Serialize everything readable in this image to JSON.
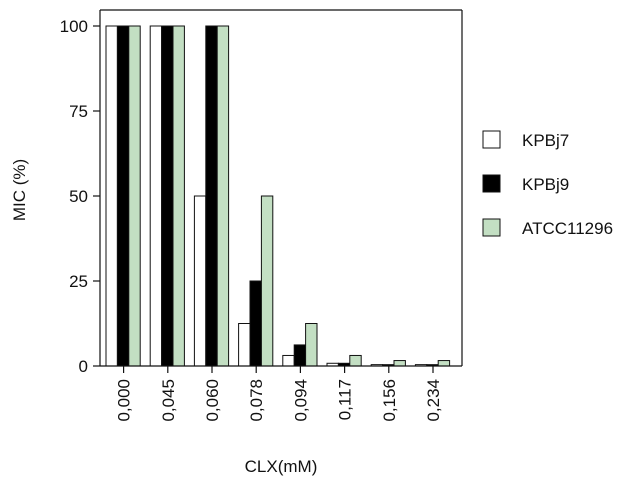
{
  "chart_data": {
    "type": "bar",
    "xlabel": "CLX(mM)",
    "ylabel": "MIC (%)",
    "ylim": [
      0,
      100
    ],
    "yticks": [
      0,
      25,
      50,
      75,
      100
    ],
    "categories": [
      "0,000",
      "0,045",
      "0,060",
      "0,078",
      "0,094",
      "0,117",
      "0,156",
      "0,234"
    ],
    "series": [
      {
        "name": "KPBj7",
        "color": "#ffffff",
        "values": [
          100,
          100,
          50,
          12.5,
          3.1,
          0.8,
          0.4,
          0.4
        ]
      },
      {
        "name": "KPBj9",
        "color": "#000000",
        "values": [
          100,
          100,
          100,
          25,
          6.2,
          0.8,
          0.4,
          0.4
        ]
      },
      {
        "name": "ATCC11296",
        "color": "#c3dfc3",
        "values": [
          100,
          100,
          100,
          50,
          12.5,
          3.1,
          1.6,
          1.6
        ]
      }
    ],
    "legend_position": "right",
    "grid": false
  }
}
